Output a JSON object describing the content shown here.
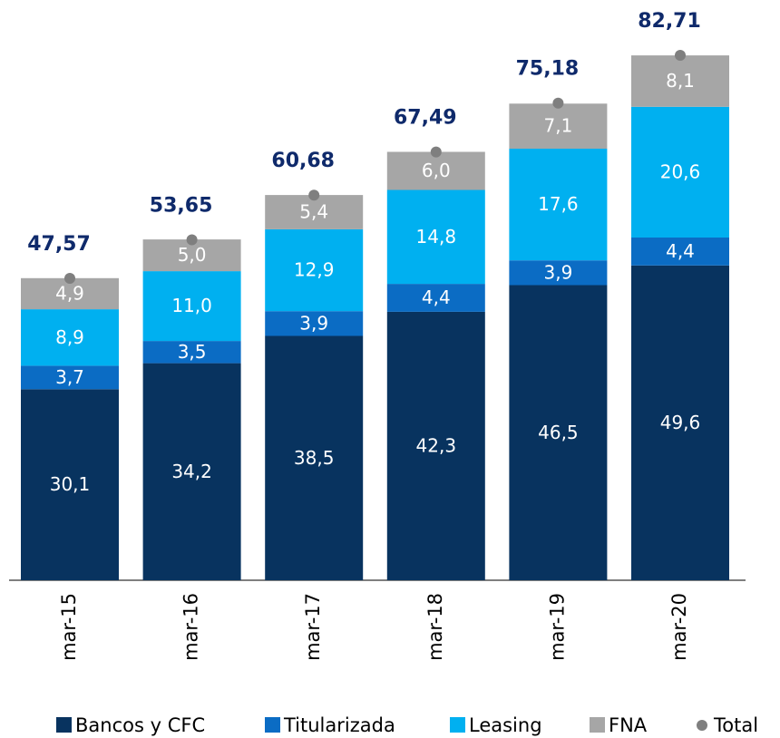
{
  "chart_data": {
    "type": "bar",
    "stacked": true,
    "categories": [
      "mar-15",
      "mar-16",
      "mar-17",
      "mar-18",
      "mar-19",
      "mar-20"
    ],
    "series": [
      {
        "name": "Bancos y CFC",
        "color": "#08335f",
        "values": [
          30.1,
          34.2,
          38.5,
          42.3,
          46.5,
          49.6
        ],
        "value_labels": [
          "30,1",
          "34,2",
          "38,5",
          "42,3",
          "46,5",
          "49,6"
        ]
      },
      {
        "name": "Titularizada",
        "color": "#0b6cc4",
        "values": [
          3.7,
          3.5,
          3.9,
          4.4,
          3.9,
          4.4
        ],
        "value_labels": [
          "3,7",
          "3,5",
          "3,9",
          "4,4",
          "3,9",
          "4,4"
        ]
      },
      {
        "name": "Leasing",
        "color": "#00b0f0",
        "values": [
          8.9,
          11.0,
          12.9,
          14.8,
          17.6,
          20.6
        ],
        "value_labels": [
          "8,9",
          "11,0",
          "12,9",
          "14,8",
          "17,6",
          "20,6"
        ]
      },
      {
        "name": "FNA",
        "color": "#a6a6a6",
        "values": [
          4.9,
          5.0,
          5.4,
          6.0,
          7.1,
          8.1
        ],
        "value_labels": [
          "4,9",
          "5,0",
          "5,4",
          "6,0",
          "7,1",
          "8,1"
        ]
      }
    ],
    "total": {
      "name": "Total",
      "color": "#7f7f7f",
      "values": [
        47.57,
        53.65,
        60.68,
        67.49,
        75.18,
        82.71
      ],
      "value_labels": [
        "47,57",
        "53,65",
        "60,68",
        "67,49",
        "75,18",
        "82,71"
      ]
    }
  }
}
